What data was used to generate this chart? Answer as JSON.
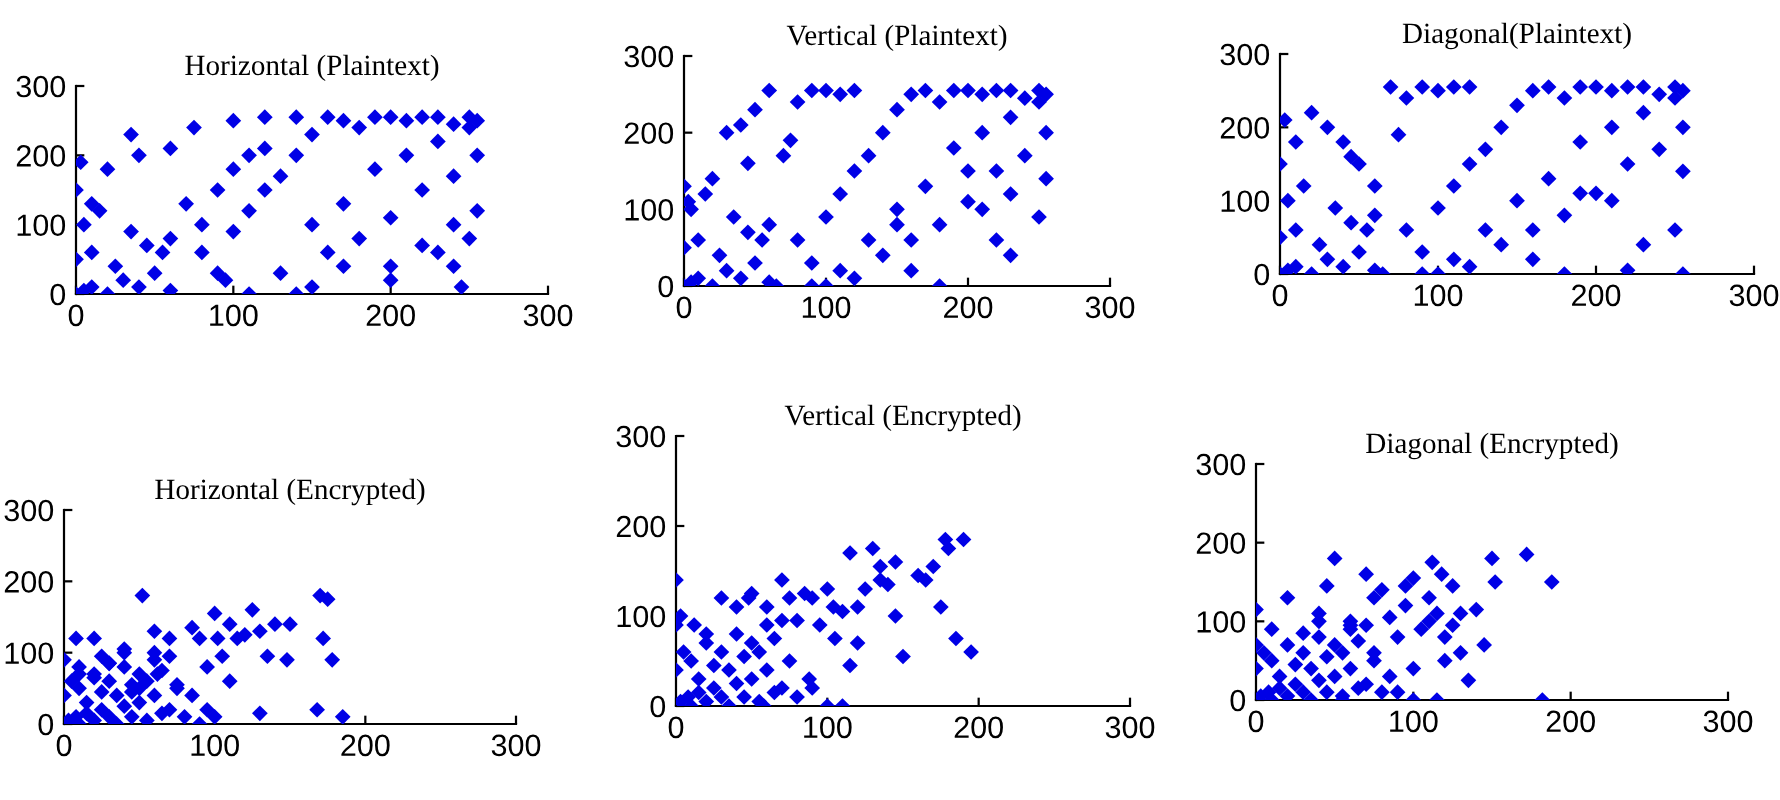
{
  "chart_data": [
    {
      "type": "scatter",
      "title": "Horizontal (Plaintext)",
      "marker": "diamond",
      "xlim": [
        0,
        300
      ],
      "ylim": [
        0,
        300
      ],
      "xticks": [
        0,
        100,
        200,
        300
      ],
      "yticks": [
        0,
        100,
        200,
        300
      ],
      "series": [
        {
          "color": "#0000e6",
          "x": [
            0,
            5,
            10,
            20,
            30,
            40,
            50,
            60,
            0,
            10,
            25,
            45,
            60,
            5,
            15,
            35,
            55,
            0,
            3,
            20,
            40,
            70,
            80,
            90,
            100,
            110,
            120,
            80,
            90,
            100,
            110,
            120,
            130,
            140,
            150,
            100,
            120,
            140,
            160,
            170,
            180,
            190,
            200,
            210,
            220,
            230,
            240,
            250,
            255,
            150,
            170,
            190,
            210,
            230,
            250,
            160,
            180,
            200,
            220,
            240,
            255,
            200,
            220,
            240,
            255,
            130,
            150,
            170,
            200,
            230,
            250,
            240,
            245,
            75,
            95,
            35,
            10,
            60,
            110,
            140
          ],
          "values": [
            0,
            5,
            10,
            0,
            20,
            10,
            30,
            5,
            50,
            60,
            40,
            70,
            80,
            100,
            120,
            90,
            60,
            150,
            190,
            180,
            200,
            130,
            100,
            150,
            180,
            200,
            210,
            60,
            30,
            90,
            120,
            150,
            170,
            200,
            230,
            250,
            255,
            255,
            255,
            250,
            240,
            255,
            255,
            250,
            255,
            255,
            245,
            255,
            250,
            100,
            130,
            180,
            200,
            220,
            240,
            60,
            80,
            110,
            150,
            170,
            200,
            40,
            70,
            100,
            120,
            30,
            10,
            40,
            20,
            60,
            80,
            40,
            10,
            240,
            20,
            230,
            130,
            210,
            0,
            0
          ]
        }
      ]
    },
    {
      "type": "scatter",
      "title": "Vertical (Plaintext)",
      "marker": "diamond",
      "xlim": [
        0,
        300
      ],
      "ylim": [
        0,
        300
      ],
      "xticks": [
        0,
        100,
        200,
        300
      ],
      "yticks": [
        0,
        100,
        200,
        300
      ],
      "series": [
        {
          "color": "#0000e6",
          "x": [
            0,
            5,
            10,
            20,
            30,
            40,
            50,
            60,
            0,
            10,
            25,
            45,
            60,
            5,
            15,
            35,
            55,
            0,
            3,
            20,
            30,
            40,
            50,
            60,
            70,
            80,
            90,
            100,
            110,
            120,
            80,
            90,
            100,
            110,
            120,
            130,
            140,
            150,
            160,
            170,
            180,
            190,
            200,
            210,
            220,
            230,
            240,
            250,
            255,
            150,
            170,
            190,
            210,
            230,
            250,
            160,
            180,
            200,
            220,
            240,
            255,
            210,
            230,
            250,
            255,
            100,
            120,
            140,
            160,
            180,
            220,
            230,
            90,
            110,
            65,
            75,
            45,
            130,
            150,
            200
          ],
          "values": [
            0,
            5,
            10,
            0,
            20,
            10,
            30,
            5,
            50,
            60,
            40,
            70,
            80,
            100,
            120,
            90,
            60,
            130,
            110,
            140,
            200,
            210,
            230,
            255,
            170,
            240,
            255,
            255,
            250,
            255,
            60,
            30,
            90,
            120,
            150,
            170,
            200,
            230,
            250,
            255,
            240,
            255,
            255,
            250,
            255,
            255,
            245,
            255,
            250,
            100,
            130,
            180,
            200,
            220,
            240,
            60,
            80,
            110,
            150,
            170,
            200,
            100,
            120,
            90,
            140,
            0,
            10,
            40,
            20,
            0,
            60,
            40,
            0,
            20,
            0,
            190,
            160,
            60,
            80,
            150
          ]
        }
      ]
    },
    {
      "type": "scatter",
      "title": "Diagonal(Plaintext)",
      "marker": "diamond",
      "xlim": [
        0,
        300
      ],
      "ylim": [
        0,
        300
      ],
      "xticks": [
        0,
        100,
        200,
        300
      ],
      "yticks": [
        0,
        100,
        200,
        300
      ],
      "series": [
        {
          "color": "#0000e6",
          "x": [
            0,
            5,
            10,
            20,
            30,
            40,
            50,
            60,
            0,
            10,
            25,
            45,
            60,
            5,
            15,
            35,
            55,
            0,
            3,
            20,
            30,
            40,
            50,
            60,
            70,
            80,
            90,
            100,
            110,
            120,
            80,
            90,
            100,
            110,
            120,
            130,
            140,
            150,
            160,
            170,
            180,
            190,
            200,
            210,
            220,
            230,
            240,
            250,
            255,
            150,
            170,
            190,
            210,
            230,
            250,
            160,
            180,
            200,
            220,
            240,
            255,
            210,
            230,
            250,
            255,
            100,
            120,
            140,
            160,
            180,
            220,
            255,
            90,
            110,
            65,
            75,
            45,
            130,
            190,
            10
          ],
          "values": [
            0,
            5,
            10,
            0,
            20,
            10,
            30,
            5,
            50,
            60,
            40,
            70,
            80,
            100,
            120,
            90,
            60,
            150,
            210,
            220,
            200,
            180,
            150,
            120,
            255,
            240,
            255,
            250,
            255,
            255,
            60,
            30,
            90,
            120,
            150,
            170,
            200,
            230,
            250,
            255,
            240,
            255,
            255,
            250,
            255,
            255,
            245,
            255,
            250,
            100,
            130,
            180,
            200,
            220,
            240,
            60,
            80,
            110,
            150,
            170,
            200,
            100,
            40,
            60,
            140,
            0,
            10,
            40,
            20,
            0,
            5,
            0,
            0,
            20,
            0,
            190,
            160,
            60,
            110,
            180
          ]
        }
      ]
    },
    {
      "type": "scatter",
      "title": "Horizontal (Encrypted)",
      "marker": "diamond",
      "xlim": [
        0,
        300
      ],
      "ylim": [
        0,
        300
      ],
      "xticks": [
        0,
        100,
        200,
        300
      ],
      "yticks": [
        0,
        100,
        200,
        300
      ],
      "series": [
        {
          "color": "#0000e6",
          "x": [
            3,
            8,
            10,
            15,
            20,
            25,
            30,
            35,
            40,
            45,
            50,
            55,
            60,
            65,
            70,
            75,
            80,
            0,
            5,
            10,
            15,
            20,
            25,
            30,
            35,
            40,
            45,
            50,
            55,
            60,
            65,
            70,
            0,
            10,
            20,
            30,
            40,
            50,
            60,
            8,
            20,
            30,
            40,
            52,
            60,
            70,
            85,
            90,
            95,
            100,
            105,
            110,
            115,
            120,
            125,
            130,
            135,
            140,
            148,
            170,
            175,
            178,
            172,
            185,
            90,
            95,
            100,
            130,
            168,
            150,
            110,
            85,
            25,
            10,
            45,
            75,
            62,
            102
          ],
          "values": [
            5,
            10,
            0,
            15,
            5,
            20,
            10,
            0,
            25,
            10,
            30,
            5,
            40,
            15,
            20,
            50,
            10,
            40,
            60,
            50,
            30,
            70,
            45,
            60,
            40,
            80,
            55,
            70,
            60,
            90,
            75,
            95,
            90,
            80,
            65,
            85,
            100,
            50,
            100,
            120,
            120,
            85,
            105,
            180,
            130,
            120,
            135,
            120,
            80,
            155,
            95,
            140,
            120,
            125,
            160,
            130,
            95,
            140,
            90,
            180,
            175,
            90,
            120,
            10,
            0,
            20,
            10,
            15,
            20,
            140,
            60,
            40,
            95,
            70,
            45,
            55,
            70,
            120
          ]
        }
      ]
    },
    {
      "type": "scatter",
      "title": "Vertical (Encrypted)",
      "marker": "diamond",
      "xlim": [
        0,
        300
      ],
      "ylim": [
        0,
        300
      ],
      "xticks": [
        0,
        100,
        200,
        300
      ],
      "yticks": [
        0,
        100,
        200,
        300
      ],
      "series": [
        {
          "color": "#0000e6",
          "x": [
            3,
            8,
            10,
            15,
            20,
            25,
            30,
            35,
            40,
            45,
            50,
            55,
            60,
            65,
            70,
            75,
            80,
            0,
            5,
            10,
            15,
            20,
            25,
            30,
            35,
            40,
            45,
            50,
            55,
            60,
            65,
            70,
            0,
            3,
            20,
            30,
            40,
            50,
            60,
            70,
            80,
            85,
            90,
            95,
            100,
            105,
            110,
            115,
            120,
            125,
            130,
            135,
            140,
            145,
            150,
            160,
            165,
            170,
            175,
            180,
            190,
            195,
            178,
            185,
            90,
            100,
            110,
            115,
            120,
            135,
            145,
            88,
            12,
            48,
            75,
            104,
            0,
            58
          ],
          "values": [
            5,
            10,
            0,
            15,
            5,
            20,
            10,
            0,
            25,
            10,
            30,
            5,
            40,
            15,
            20,
            50,
            10,
            40,
            60,
            50,
            30,
            70,
            45,
            60,
            40,
            80,
            55,
            70,
            60,
            90,
            75,
            95,
            140,
            100,
            80,
            120,
            110,
            125,
            110,
            140,
            95,
            125,
            120,
            90,
            130,
            75,
            105,
            170,
            110,
            130,
            175,
            155,
            135,
            160,
            55,
            145,
            140,
            155,
            110,
            175,
            185,
            60,
            185,
            75,
            20,
            0,
            0,
            45,
            70,
            140,
            100,
            30,
            90,
            120,
            120,
            110,
            90,
            0
          ]
        }
      ]
    },
    {
      "type": "scatter",
      "title": "Diagonal (Encrypted)",
      "marker": "diamond",
      "xlim": [
        0,
        300
      ],
      "ylim": [
        0,
        300
      ],
      "xticks": [
        0,
        100,
        200,
        300
      ],
      "yticks": [
        0,
        100,
        200,
        300
      ],
      "series": [
        {
          "color": "#0000e6",
          "x": [
            3,
            8,
            10,
            15,
            20,
            25,
            30,
            35,
            40,
            45,
            50,
            55,
            60,
            65,
            70,
            75,
            80,
            0,
            5,
            10,
            15,
            20,
            25,
            30,
            35,
            40,
            45,
            50,
            55,
            60,
            65,
            70,
            0,
            20,
            30,
            40,
            45,
            50,
            60,
            70,
            75,
            80,
            85,
            90,
            95,
            100,
            105,
            110,
            112,
            115,
            118,
            120,
            125,
            130,
            135,
            140,
            145,
            150,
            152,
            172,
            188,
            182,
            100,
            115,
            90,
            60,
            130,
            120,
            75,
            100,
            85,
            95,
            110,
            125,
            0,
            10,
            40,
            55
          ],
          "values": [
            5,
            10,
            0,
            15,
            5,
            20,
            10,
            0,
            25,
            10,
            30,
            5,
            40,
            15,
            20,
            50,
            10,
            40,
            60,
            50,
            30,
            70,
            45,
            60,
            40,
            80,
            55,
            70,
            60,
            90,
            75,
            95,
            115,
            130,
            85,
            100,
            145,
            180,
            100,
            160,
            130,
            140,
            105,
            80,
            145,
            155,
            90,
            130,
            175,
            110,
            160,
            80,
            145,
            60,
            25,
            115,
            70,
            180,
            150,
            185,
            150,
            0,
            0,
            0,
            10,
            95,
            110,
            50,
            60,
            40,
            30,
            120,
            100,
            95,
            70,
            90,
            110,
            0
          ]
        }
      ]
    }
  ]
}
